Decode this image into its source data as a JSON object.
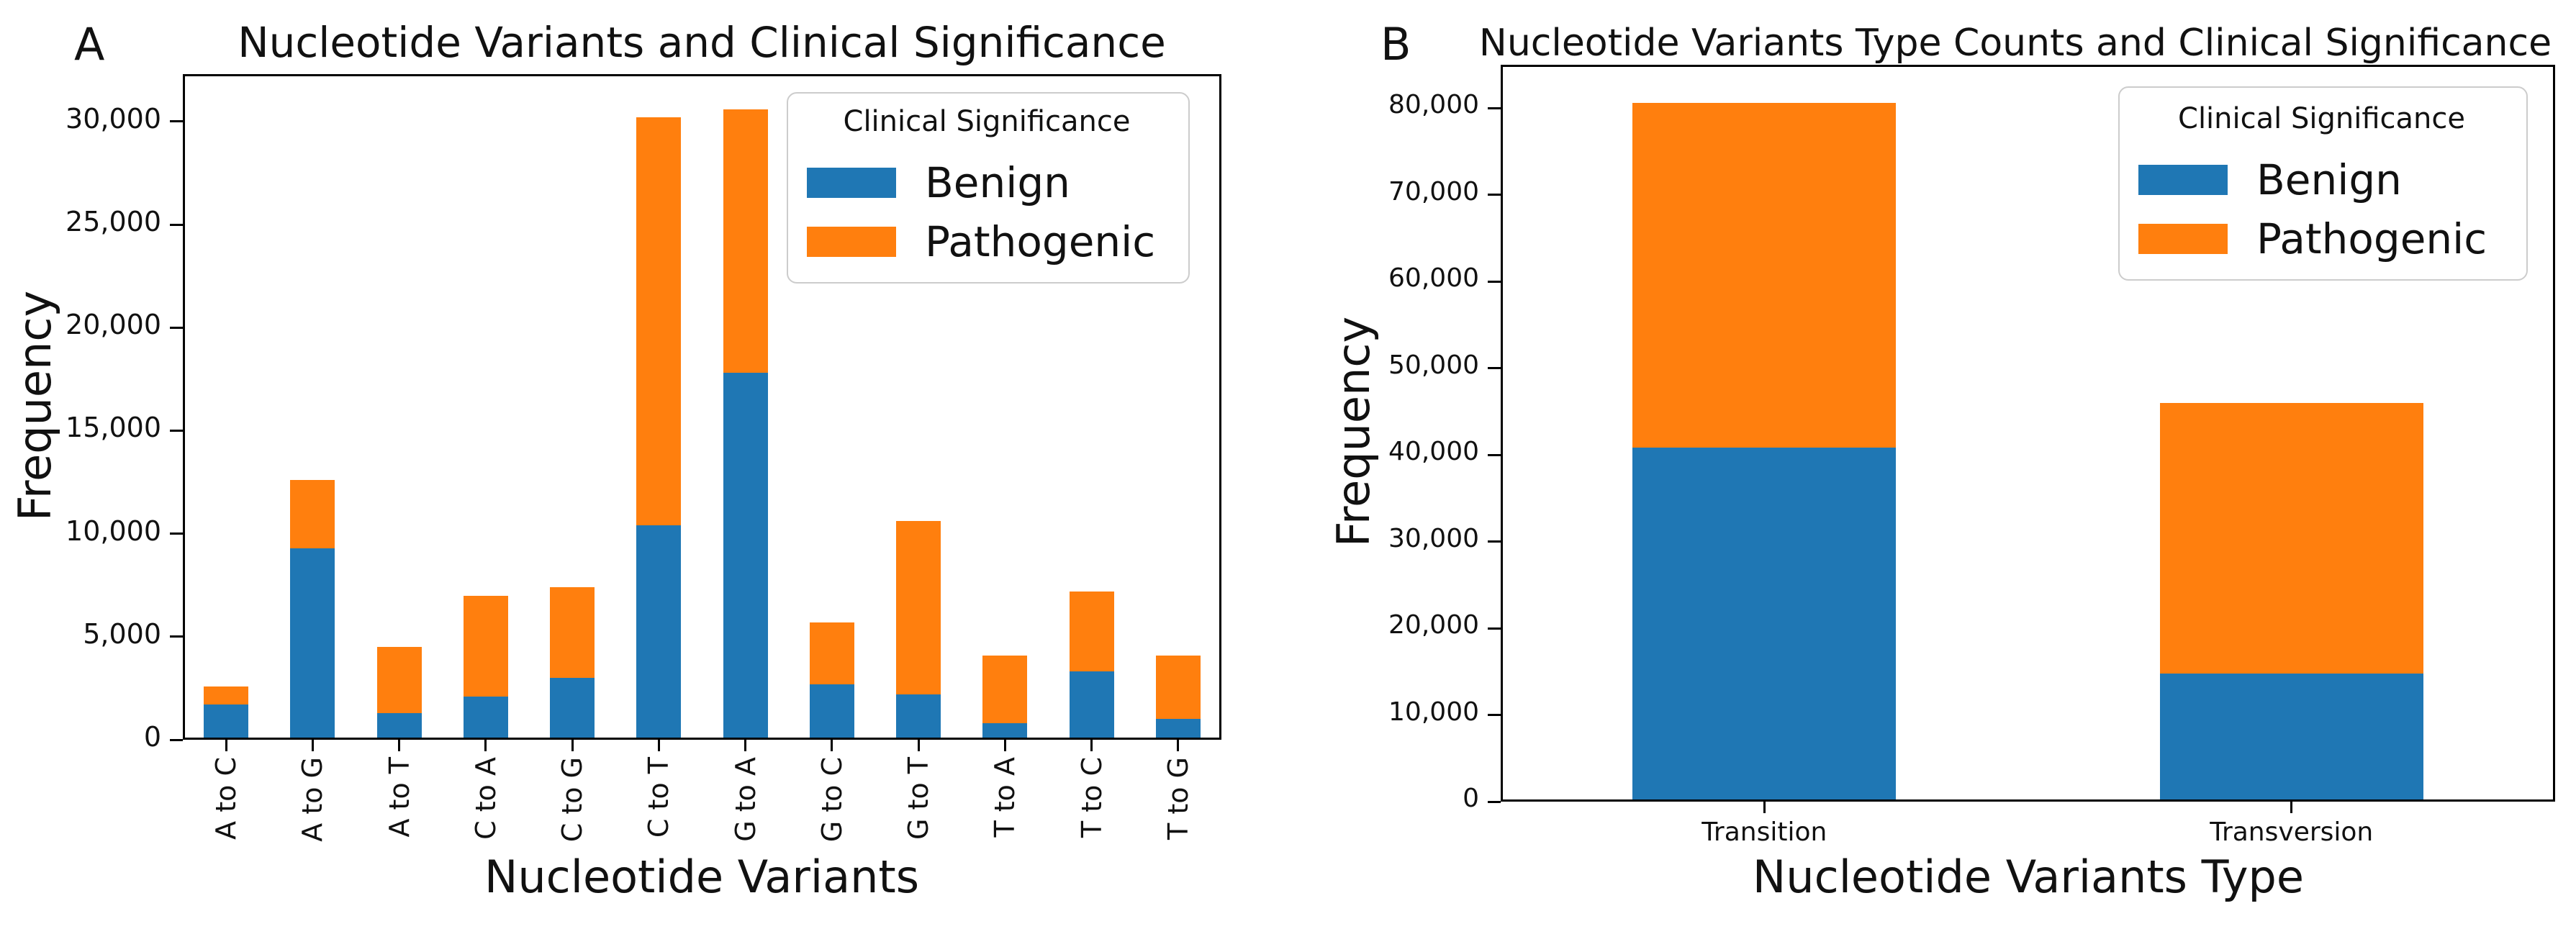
{
  "colors": {
    "benign": "#1f77b4",
    "pathogenic": "#ff7f0e",
    "axis": "#000000",
    "legend_border": "#cccccc",
    "text": "#111111",
    "background": "#ffffff"
  },
  "chart_data": [
    {
      "type": "bar",
      "stacked": true,
      "panel_label": "A",
      "title": "Nucleotide Variants and Clinical Significance",
      "xlabel": "Nucleotide Variants",
      "ylabel": "Frequency",
      "ylim": [
        0,
        32300
      ],
      "grid": false,
      "xtick_rotation": 90,
      "yticks": [
        {
          "value": 0,
          "label": "0"
        },
        {
          "value": 5000,
          "label": "5,000"
        },
        {
          "value": 10000,
          "label": "10,000"
        },
        {
          "value": 15000,
          "label": "15,000"
        },
        {
          "value": 20000,
          "label": "20,000"
        },
        {
          "value": 25000,
          "label": "25,000"
        },
        {
          "value": 30000,
          "label": "30,000"
        }
      ],
      "categories": [
        "A to C",
        "A to G",
        "A to T",
        "C to A",
        "C to G",
        "C to T",
        "G to A",
        "G to C",
        "G to T",
        "T to A",
        "T to C",
        "T to G"
      ],
      "series": [
        {
          "name": "Benign",
          "color": "#1f77b4",
          "values": [
            1700,
            9300,
            1300,
            2100,
            3000,
            10400,
            17800,
            2700,
            2200,
            800,
            3300,
            1000
          ]
        },
        {
          "name": "Pathogenic",
          "color": "#ff7f0e",
          "values": [
            900,
            3300,
            3200,
            4900,
            4400,
            19800,
            12800,
            3000,
            8400,
            3300,
            3900,
            3100
          ]
        }
      ],
      "legend": {
        "title": "Clinical Significance",
        "position": "upper right"
      }
    },
    {
      "type": "bar",
      "stacked": true,
      "panel_label": "B",
      "title": "Nucleotide Variants Type Counts and Clinical Significance",
      "xlabel": "Nucleotide Variants Type",
      "ylabel": "Frequency",
      "ylim": [
        0,
        85000
      ],
      "grid": false,
      "xtick_rotation": 0,
      "yticks": [
        {
          "value": 0,
          "label": "0"
        },
        {
          "value": 10000,
          "label": "10,000"
        },
        {
          "value": 20000,
          "label": "20,000"
        },
        {
          "value": 30000,
          "label": "30,000"
        },
        {
          "value": 40000,
          "label": "40,000"
        },
        {
          "value": 50000,
          "label": "50,000"
        },
        {
          "value": 60000,
          "label": "60,000"
        },
        {
          "value": 70000,
          "label": "70,000"
        },
        {
          "value": 80000,
          "label": "80,000"
        }
      ],
      "categories": [
        "Transition",
        "Transversion"
      ],
      "series": [
        {
          "name": "Benign",
          "color": "#1f77b4",
          "values": [
            40800,
            14800
          ]
        },
        {
          "name": "Pathogenic",
          "color": "#ff7f0e",
          "values": [
            39800,
            31200
          ]
        }
      ],
      "legend": {
        "title": "Clinical Significance",
        "position": "upper right"
      }
    }
  ]
}
